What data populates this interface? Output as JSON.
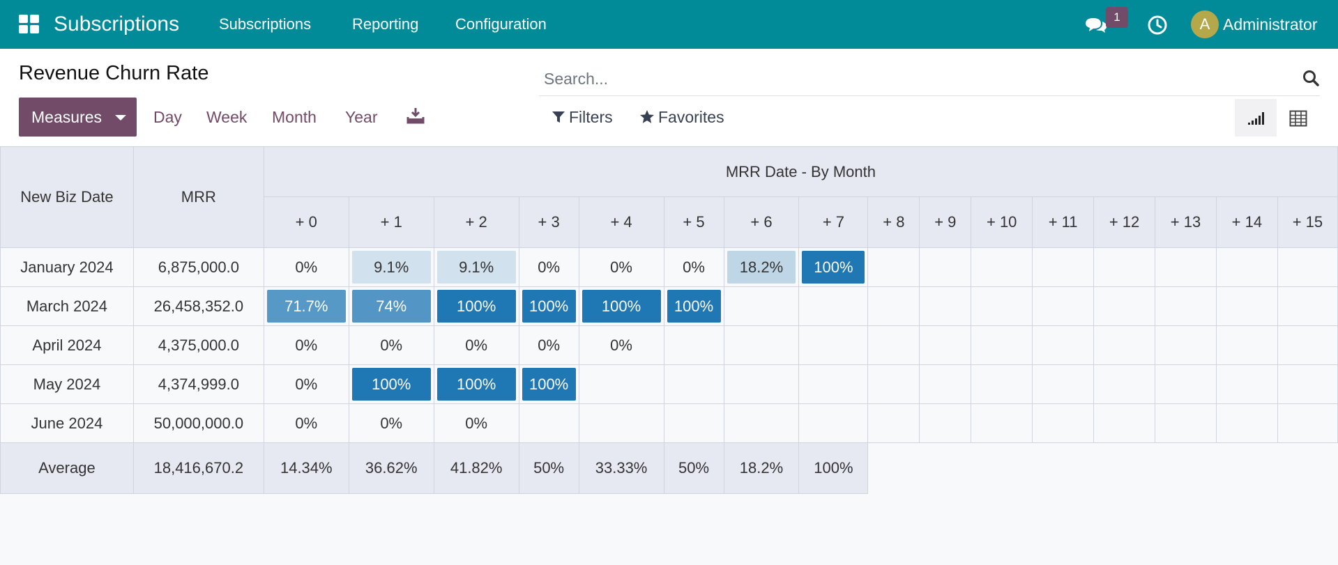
{
  "navbar": {
    "app_name": "Subscriptions",
    "menus": [
      "Subscriptions",
      "Reporting",
      "Configuration"
    ],
    "chat_badge": "1",
    "user_initial": "A",
    "user_name": "Administrator",
    "background": "#018b98"
  },
  "control_panel": {
    "title": "Revenue Churn Rate",
    "search_placeholder": "Search...",
    "measures_label": "Measures",
    "intervals": [
      "Day",
      "Week",
      "Month",
      "Year"
    ],
    "filters_label": "Filters",
    "favorites_label": "Favorites",
    "active_view": "cohort",
    "accent": "#714b67"
  },
  "cohort": {
    "row_header": "New Biz Date",
    "measure_header": "MRR",
    "group_header": "MRR Date - By Month",
    "columns": [
      "+ 0",
      "+ 1",
      "+ 2",
      "+ 3",
      "+ 4",
      "+ 5",
      "+ 6",
      "+ 7",
      "+ 8",
      "+ 9",
      "+ 10",
      "+ 11",
      "+ 12",
      "+ 13",
      "+ 14",
      "+ 15"
    ],
    "rows": [
      {
        "date": "January 2024",
        "mrr": "6,875,000.0",
        "cells": [
          "0%",
          "9.1%",
          "9.1%",
          "0%",
          "0%",
          "0%",
          "18.2%",
          "100%",
          "",
          "",
          "",
          "",
          "",
          "",
          "",
          ""
        ]
      },
      {
        "date": "March 2024",
        "mrr": "26,458,352.0",
        "cells": [
          "71.7%",
          "74%",
          "100%",
          "100%",
          "100%",
          "100%",
          "",
          "",
          "",
          "",
          "",
          "",
          "",
          "",
          "",
          ""
        ]
      },
      {
        "date": "April 2024",
        "mrr": "4,375,000.0",
        "cells": [
          "0%",
          "0%",
          "0%",
          "0%",
          "0%",
          "",
          "",
          "",
          "",
          "",
          "",
          "",
          "",
          "",
          "",
          ""
        ]
      },
      {
        "date": "May 2024",
        "mrr": "4,374,999.0",
        "cells": [
          "0%",
          "100%",
          "100%",
          "100%",
          "",
          "",
          "",
          "",
          "",
          "",
          "",
          "",
          "",
          "",
          "",
          ""
        ]
      },
      {
        "date": "June 2024",
        "mrr": "50,000,000.0",
        "cells": [
          "0%",
          "0%",
          "0%",
          "",
          "",
          "",
          "",
          "",
          "",
          "",
          "",
          "",
          "",
          "",
          "",
          ""
        ]
      }
    ],
    "average": {
      "label": "Average",
      "mrr": "18,416,670.2",
      "cells": [
        "14.34%",
        "36.62%",
        "41.82%",
        "50%",
        "33.33%",
        "50%",
        "18.2%",
        "100%"
      ]
    },
    "heat_color": "#1f77b4"
  }
}
